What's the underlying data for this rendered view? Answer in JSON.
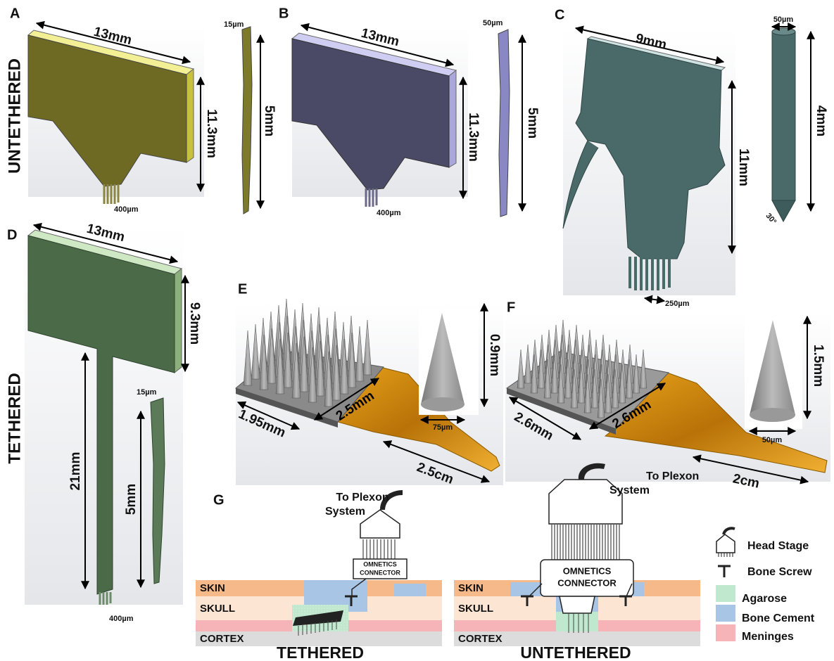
{
  "row_labels": {
    "untethered": "UNTETHERED",
    "tethered": "TETHERED"
  },
  "panels": {
    "a": {
      "label": "A",
      "width": "13mm",
      "height": "11.3mm",
      "pitch": "400µm",
      "thickness": "15µm",
      "length": "5mm"
    },
    "b": {
      "label": "B",
      "width": "13mm",
      "height": "11.3mm",
      "pitch": "400µm",
      "thickness": "50µm",
      "length": "5mm"
    },
    "c": {
      "label": "C",
      "width": "9mm",
      "height": "11mm",
      "pitch": "250µm",
      "diameter": "50µm",
      "length": "4mm",
      "angle": "30°"
    },
    "d": {
      "label": "D",
      "width": "13mm",
      "height": "9.3mm",
      "shank": "21mm",
      "pitch": "400µm",
      "thickness": "15µm",
      "length": "5mm"
    },
    "e": {
      "label": "E",
      "base": "1.95mm",
      "cable_width": "2.5mm",
      "cable_length": "2.5cm",
      "spike_height": "0.9mm",
      "spike_base": "75µm"
    },
    "f": {
      "label": "F",
      "base": "2.6mm",
      "cable_width": "2.6mm",
      "cable_length": "2cm",
      "spike_height": "1.5mm",
      "spike_base": "50µm"
    },
    "g": {
      "label": "G",
      "tethered": {
        "plexon": [
          "To Plexon",
          "System"
        ],
        "connector": [
          "OMNETICS",
          "CONNECTOR"
        ],
        "skin": "SKIN",
        "skull": "SKULL",
        "cortex": "CORTEX",
        "caption": "TETHERED"
      },
      "untethered": {
        "plexon": [
          "To Plexon",
          "System"
        ],
        "connector": [
          "OMNETICS",
          "CONNECTOR"
        ],
        "skin": "SKIN",
        "skull": "SKULL",
        "cortex": "CORTEX",
        "caption": "UNTETHERED"
      },
      "legend": [
        "Head Stage",
        "Bone Screw",
        "Agarose",
        "Bone Cement",
        "Meninges"
      ]
    }
  }
}
